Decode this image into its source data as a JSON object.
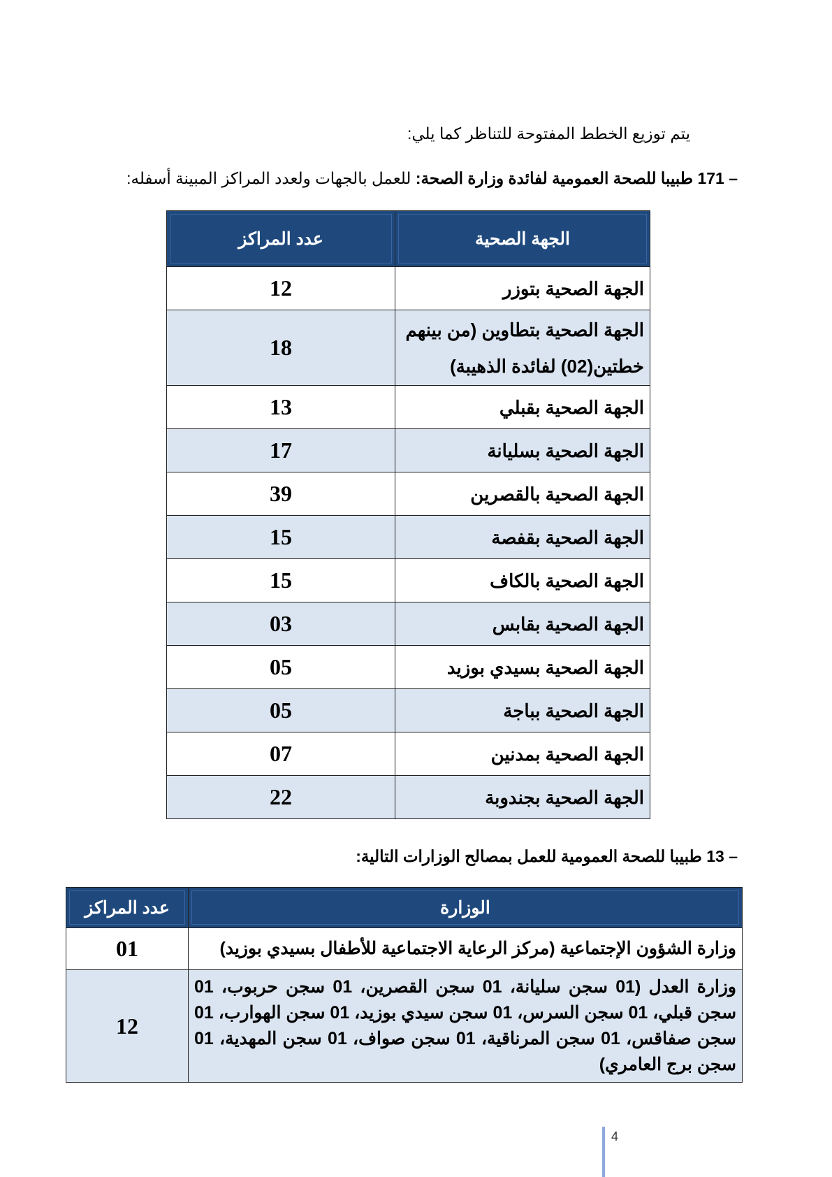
{
  "intro": "يتم توزيع الخطط المفتوحة للتناظر كما يلي:",
  "section1": {
    "bold": "– 171 طبيبا للصحة العمومية لفائدة وزارة الصحة:",
    "rest": " للعمل بالجهات ولعدد المراكز المبينة أسفله:"
  },
  "table1": {
    "headers": [
      "الجهة الصحية",
      "عدد المراكز"
    ],
    "rows": [
      {
        "name": "الجهة الصحية بتوزر",
        "count": "12"
      },
      {
        "name": "الجهة الصحية بتطاوين (من بينهم خطتين(02) لفائدة الذهيبة)",
        "count": "18"
      },
      {
        "name": "الجهة الصحية بقبلي",
        "count": "13"
      },
      {
        "name": "الجهة الصحية بسليانة",
        "count": "17"
      },
      {
        "name": "الجهة الصحية بالقصرين",
        "count": "39"
      },
      {
        "name": "الجهة الصحية بقفصة",
        "count": "15"
      },
      {
        "name": "الجهة الصحية بالكاف",
        "count": "15"
      },
      {
        "name": "الجهة الصحية بقابس",
        "count": "03"
      },
      {
        "name": "الجهة الصحية بسيدي بوزيد",
        "count": "05"
      },
      {
        "name": "الجهة الصحية بباجة",
        "count": "05"
      },
      {
        "name": "الجهة الصحية بمدنين",
        "count": "07"
      },
      {
        "name": "الجهة الصحية بجندوبة",
        "count": "22"
      }
    ]
  },
  "section2": "– 13 طبيبا للصحة العمومية للعمل بمصالح الوزارات التالية:",
  "table2": {
    "headers": [
      "الوزارة",
      "عدد المراكز"
    ],
    "rows": [
      {
        "name": "وزارة الشؤون الإجتماعية (مركز الرعاية الاجتماعية للأطفال بسيدي بوزيد)",
        "count": "01"
      },
      {
        "name": "وزارة العدل (01 سجن سليانة، 01 سجن القصرين، 01 سجن حربوب، 01 سجن قبلي، 01 سجن السرس، 01 سجن سيدي بوزيد، 01 سجن الهوارب، 01 سجن صفاقس، 01 سجن المرناقية، 01 سجن صواف، 01 سجن المهدية، 01 سجن برج العامري)",
        "count": "12"
      }
    ]
  },
  "page_number": "4",
  "colors": {
    "header_bg": "#1f497d",
    "alt_row": "#dbe5f1"
  }
}
